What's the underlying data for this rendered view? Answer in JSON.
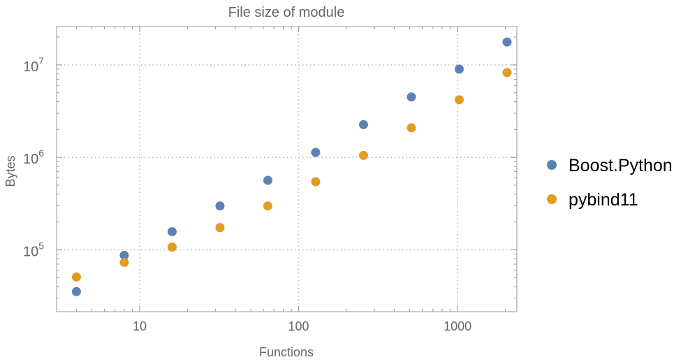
{
  "chart_data": {
    "type": "scatter",
    "title": "File size of module",
    "xlabel": "Functions",
    "ylabel": "Bytes",
    "xscale": "log",
    "yscale": "log",
    "xlim": [
      3.0,
      2360
    ],
    "ylim": [
      21400,
      26000000
    ],
    "grid": true,
    "legend_position": "right",
    "x_ticks": [
      {
        "value": 10,
        "label": "10"
      },
      {
        "value": 100,
        "label": "100"
      },
      {
        "value": 1000,
        "label": "1000"
      }
    ],
    "y_ticks": [
      {
        "value": 100000,
        "base": "10",
        "exp": "5"
      },
      {
        "value": 1000000,
        "base": "10",
        "exp": "6"
      },
      {
        "value": 10000000,
        "base": "10",
        "exp": "7"
      }
    ],
    "x": [
      4,
      8,
      16,
      32,
      64,
      128,
      256,
      512,
      1024,
      2048
    ],
    "series": [
      {
        "name": "Boost.Python",
        "color": "#5E81B5",
        "values": [
          35300,
          87000,
          157000,
          298000,
          564000,
          1130000,
          2260000,
          4500000,
          9000000,
          17700000
        ]
      },
      {
        "name": "pybind11",
        "color": "#E19C24",
        "values": [
          50800,
          73100,
          107000,
          174000,
          298000,
          545000,
          1050000,
          2090000,
          4200000,
          8260000
        ]
      }
    ]
  }
}
